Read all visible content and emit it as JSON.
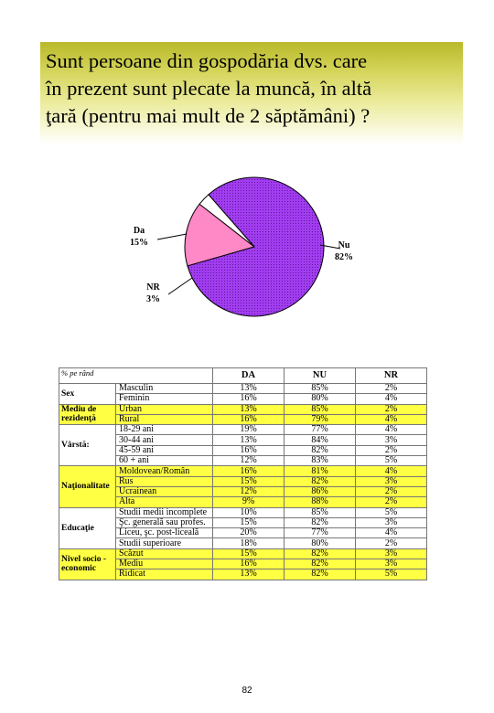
{
  "title_lines": [
    "Sunt persoane din gospodăria dvs. care",
    "în prezent sunt plecate la muncă, în altă",
    "ţară (pentru mai mult de 2 săptămâni) ?"
  ],
  "chart_data": {
    "type": "pie",
    "slices": [
      {
        "label": "Nu",
        "value": 82,
        "display": "82%",
        "color": "#a23cf0"
      },
      {
        "label": "Da",
        "value": 15,
        "display": "15%",
        "color": "#ff88c6"
      },
      {
        "label": "NR",
        "value": 3,
        "display": "3%",
        "color": "#ffffff"
      }
    ],
    "legend": "none"
  },
  "table": {
    "corner": "% pe rând",
    "headers": [
      "DA",
      "NU",
      "NR"
    ],
    "highlight_color": "#ffff44",
    "groups": [
      {
        "name": "Sex",
        "highlight": false,
        "rows": [
          {
            "label": "Masculin",
            "values": [
              "13%",
              "85%",
              "2%"
            ]
          },
          {
            "label": "Feminin",
            "values": [
              "16%",
              "80%",
              "4%"
            ]
          }
        ]
      },
      {
        "name": "Mediu de rezidenţă",
        "highlight": true,
        "rows": [
          {
            "label": "Urban",
            "values": [
              "13%",
              "85%",
              "2%"
            ]
          },
          {
            "label": "Rural",
            "values": [
              "16%",
              "79%",
              "4%"
            ]
          }
        ]
      },
      {
        "name": "Vârstă:",
        "highlight": false,
        "rows": [
          {
            "label": "18-29 ani",
            "values": [
              "19%",
              "77%",
              "4%"
            ]
          },
          {
            "label": "30-44 ani",
            "values": [
              "13%",
              "84%",
              "3%"
            ]
          },
          {
            "label": "45-59 ani",
            "values": [
              "16%",
              "82%",
              "2%"
            ]
          },
          {
            "label": "60 + ani",
            "values": [
              "12%",
              "83%",
              "5%"
            ]
          }
        ]
      },
      {
        "name": "Naţionalitate",
        "highlight": true,
        "rows": [
          {
            "label": "Moldovean/Român",
            "values": [
              "16%",
              "81%",
              "4%"
            ]
          },
          {
            "label": "Rus",
            "values": [
              "15%",
              "82%",
              "3%"
            ]
          },
          {
            "label": "Ucrainean",
            "values": [
              "12%",
              "86%",
              "2%"
            ]
          },
          {
            "label": "Alta",
            "values": [
              "9%",
              "88%",
              "2%"
            ]
          }
        ]
      },
      {
        "name": "Educaţie",
        "highlight": false,
        "rows": [
          {
            "label": "Studii medii incomplete",
            "values": [
              "10%",
              "85%",
              "5%"
            ]
          },
          {
            "label": "Şc. generală sau profes.",
            "values": [
              "15%",
              "82%",
              "3%"
            ]
          },
          {
            "label": "Liceu, şc. post-liceală",
            "values": [
              "20%",
              "77%",
              "4%"
            ]
          },
          {
            "label": "Studii superioare",
            "values": [
              "18%",
              "80%",
              "2%"
            ]
          }
        ]
      },
      {
        "name": "Nivel socio - economic",
        "highlight": true,
        "rows": [
          {
            "label": "Scăzut",
            "values": [
              "15%",
              "82%",
              "3%"
            ]
          },
          {
            "label": "Mediu",
            "values": [
              "16%",
              "82%",
              "3%"
            ]
          },
          {
            "label": "Ridicat",
            "values": [
              "13%",
              "82%",
              "5%"
            ]
          }
        ]
      }
    ]
  },
  "page_number": "82"
}
